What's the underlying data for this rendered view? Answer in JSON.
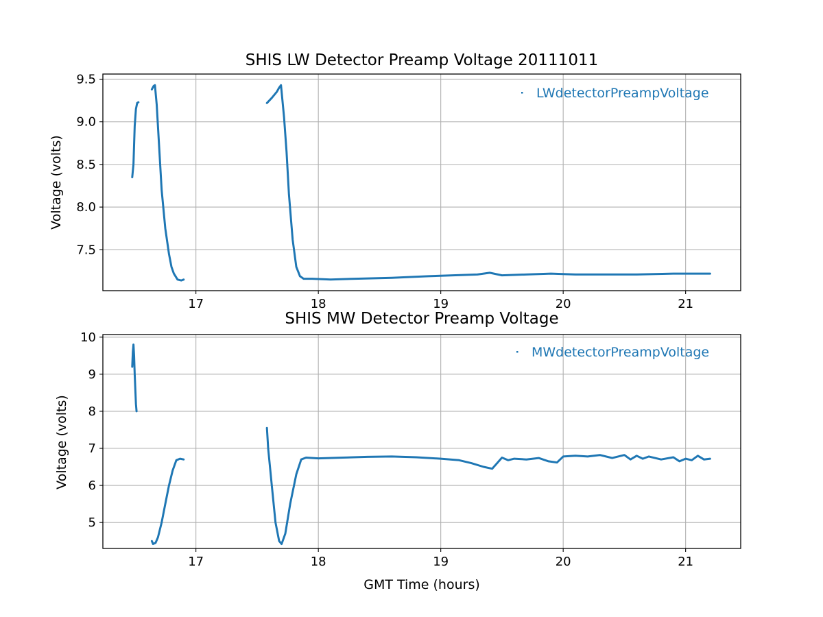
{
  "chart_data": [
    {
      "type": "scatter",
      "title": "SHIS LW Detector Preamp Voltage 20111011",
      "xlabel": "",
      "ylabel": "Voltage (volts)",
      "xlim": [
        16.24,
        21.45
      ],
      "ylim": [
        7.02,
        9.56
      ],
      "xticks": [
        17,
        18,
        19,
        20,
        21
      ],
      "yticks": [
        7.5,
        8.0,
        8.5,
        9.0,
        9.5
      ],
      "xtick_labels": [
        "17",
        "18",
        "19",
        "20",
        "21"
      ],
      "ytick_labels": [
        "7.5",
        "8.0",
        "8.5",
        "9.0",
        "9.5"
      ],
      "grid": true,
      "legend": "upper right",
      "series": [
        {
          "name": "LWdetectorPreampVoltage",
          "color": "#1f77b4",
          "segments": [
            [
              [
                16.48,
                8.35
              ],
              [
                16.49,
                8.5
              ],
              [
                16.5,
                8.95
              ],
              [
                16.51,
                9.15
              ],
              [
                16.52,
                9.22
              ],
              [
                16.53,
                9.23
              ]
            ],
            [
              [
                16.64,
                9.38
              ],
              [
                16.655,
                9.42
              ],
              [
                16.665,
                9.43
              ],
              [
                16.68,
                9.2
              ],
              [
                16.7,
                8.7
              ],
              [
                16.72,
                8.2
              ],
              [
                16.75,
                7.75
              ],
              [
                16.78,
                7.45
              ],
              [
                16.8,
                7.3
              ],
              [
                16.82,
                7.22
              ],
              [
                16.85,
                7.15
              ],
              [
                16.88,
                7.14
              ],
              [
                16.9,
                7.15
              ]
            ],
            [
              [
                17.58,
                9.22
              ],
              [
                17.62,
                9.28
              ],
              [
                17.66,
                9.35
              ],
              [
                17.68,
                9.4
              ],
              [
                17.695,
                9.43
              ],
              [
                17.72,
                9.05
              ],
              [
                17.74,
                8.65
              ],
              [
                17.76,
                8.15
              ],
              [
                17.79,
                7.62
              ],
              [
                17.82,
                7.3
              ],
              [
                17.85,
                7.19
              ],
              [
                17.88,
                7.16
              ],
              [
                17.95,
                7.16
              ],
              [
                18.1,
                7.15
              ],
              [
                18.3,
                7.16
              ],
              [
                18.6,
                7.17
              ],
              [
                18.9,
                7.19
              ],
              [
                19.1,
                7.2
              ],
              [
                19.3,
                7.21
              ],
              [
                19.4,
                7.23
              ],
              [
                19.5,
                7.2
              ],
              [
                19.7,
                7.21
              ],
              [
                19.9,
                7.22
              ],
              [
                20.1,
                7.21
              ],
              [
                20.3,
                7.21
              ],
              [
                20.6,
                7.21
              ],
              [
                20.9,
                7.22
              ],
              [
                21.2,
                7.22
              ]
            ]
          ]
        }
      ]
    },
    {
      "type": "scatter",
      "title": "SHIS MW Detector Preamp Voltage",
      "xlabel": "GMT Time (hours)",
      "ylabel": "Voltage (volts)",
      "xlim": [
        16.24,
        21.45
      ],
      "ylim": [
        4.3,
        10.07
      ],
      "xticks": [
        17,
        18,
        19,
        20,
        21
      ],
      "yticks": [
        5,
        6,
        7,
        8,
        9,
        10
      ],
      "xtick_labels": [
        "17",
        "18",
        "19",
        "20",
        "21"
      ],
      "ytick_labels": [
        "5",
        "6",
        "7",
        "8",
        "9",
        "10"
      ],
      "grid": true,
      "legend": "upper right",
      "series": [
        {
          "name": "MWdetectorPreampVoltage",
          "color": "#1f77b4",
          "segments": [
            [
              [
                16.48,
                9.2
              ],
              [
                16.485,
                9.6
              ],
              [
                16.49,
                9.8
              ],
              [
                16.495,
                9.5
              ],
              [
                16.5,
                9.0
              ],
              [
                16.505,
                8.6
              ],
              [
                16.51,
                8.2
              ],
              [
                16.515,
                8.0
              ]
            ],
            [
              [
                16.64,
                4.5
              ],
              [
                16.65,
                4.42
              ],
              [
                16.67,
                4.45
              ],
              [
                16.69,
                4.6
              ],
              [
                16.72,
                5.0
              ],
              [
                16.75,
                5.5
              ],
              [
                16.78,
                6.0
              ],
              [
                16.81,
                6.4
              ],
              [
                16.84,
                6.68
              ],
              [
                16.87,
                6.72
              ],
              [
                16.9,
                6.7
              ]
            ],
            [
              [
                17.58,
                7.55
              ],
              [
                17.59,
                7.0
              ],
              [
                17.62,
                6.0
              ],
              [
                17.65,
                5.0
              ],
              [
                17.68,
                4.5
              ],
              [
                17.7,
                4.42
              ],
              [
                17.73,
                4.7
              ],
              [
                17.77,
                5.5
              ],
              [
                17.82,
                6.3
              ],
              [
                17.86,
                6.7
              ],
              [
                17.9,
                6.75
              ],
              [
                18.0,
                6.73
              ],
              [
                18.2,
                6.75
              ],
              [
                18.4,
                6.77
              ],
              [
                18.6,
                6.78
              ],
              [
                18.8,
                6.76
              ],
              [
                19.0,
                6.72
              ],
              [
                19.15,
                6.68
              ],
              [
                19.25,
                6.6
              ],
              [
                19.35,
                6.5
              ],
              [
                19.42,
                6.45
              ],
              [
                19.46,
                6.6
              ],
              [
                19.5,
                6.75
              ],
              [
                19.55,
                6.68
              ],
              [
                19.6,
                6.72
              ],
              [
                19.7,
                6.7
              ],
              [
                19.8,
                6.74
              ],
              [
                19.88,
                6.65
              ],
              [
                19.95,
                6.62
              ],
              [
                20.0,
                6.78
              ],
              [
                20.1,
                6.8
              ],
              [
                20.2,
                6.78
              ],
              [
                20.3,
                6.82
              ],
              [
                20.4,
                6.74
              ],
              [
                20.5,
                6.82
              ],
              [
                20.55,
                6.7
              ],
              [
                20.6,
                6.8
              ],
              [
                20.65,
                6.72
              ],
              [
                20.7,
                6.78
              ],
              [
                20.8,
                6.7
              ],
              [
                20.9,
                6.76
              ],
              [
                20.95,
                6.65
              ],
              [
                21.0,
                6.72
              ],
              [
                21.05,
                6.68
              ],
              [
                21.1,
                6.8
              ],
              [
                21.15,
                6.7
              ],
              [
                21.2,
                6.72
              ]
            ]
          ]
        }
      ]
    }
  ]
}
